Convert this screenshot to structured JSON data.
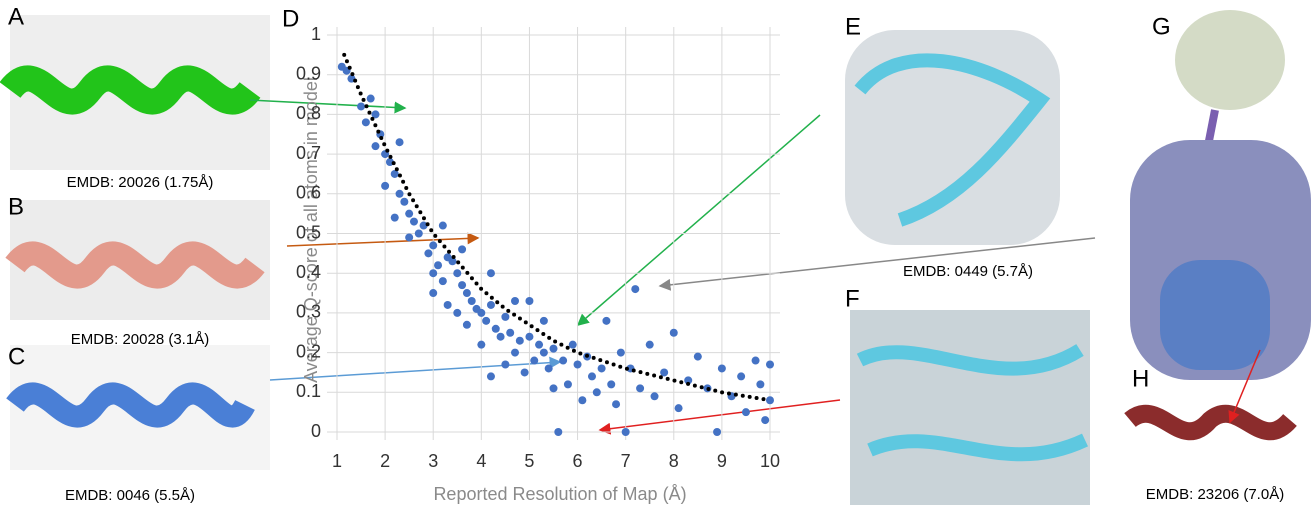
{
  "figure": {
    "panel_labels": [
      "A",
      "B",
      "C",
      "D",
      "E",
      "F",
      "G",
      "H"
    ],
    "captions": [
      "EMDB: 20026 (1.75Å)",
      "EMDB: 20028 (3.1Å)",
      "EMDB: 0046 (5.5Å)",
      "EMDB: 0449 (5.7Å)",
      "EMDB: 23206 (7.0Å)"
    ]
  },
  "chart_data": {
    "type": "scatter",
    "xlabel": "Reported Resolution of Map  (Å)",
    "ylabel": "Average Q-score of all atoms in model",
    "xlim": [
      1,
      10
    ],
    "ylim": [
      0,
      1
    ],
    "xticks": [
      1,
      2,
      3,
      4,
      5,
      6,
      7,
      8,
      9,
      10
    ],
    "yticks": [
      0,
      0.1,
      0.2,
      0.3,
      0.4,
      0.5,
      0.6,
      0.7,
      0.8,
      0.9,
      1
    ],
    "grid": true,
    "series": [
      {
        "type": "scatter",
        "color": "#4472c4",
        "x": [
          1.1,
          1.2,
          1.3,
          1.5,
          1.6,
          1.7,
          1.8,
          1.8,
          1.9,
          2.0,
          2.0,
          2.1,
          2.2,
          2.2,
          2.3,
          2.4,
          2.5,
          2.5,
          2.6,
          2.7,
          2.8,
          2.9,
          3.0,
          3.0,
          3.1,
          3.2,
          3.2,
          3.3,
          3.3,
          3.4,
          3.5,
          3.5,
          3.6,
          3.7,
          3.7,
          3.8,
          3.9,
          4.0,
          4.0,
          4.1,
          4.2,
          4.2,
          4.3,
          4.4,
          4.5,
          4.5,
          4.6,
          4.7,
          4.8,
          4.9,
          5.0,
          5.0,
          5.1,
          5.2,
          5.3,
          5.4,
          5.5,
          5.5,
          5.6,
          5.7,
          5.8,
          5.9,
          6.0,
          6.1,
          6.2,
          6.3,
          6.4,
          6.5,
          6.6,
          6.7,
          6.8,
          6.9,
          7.0,
          7.1,
          7.2,
          7.3,
          7.5,
          7.6,
          7.8,
          8.0,
          8.1,
          8.3,
          8.5,
          8.7,
          8.9,
          9.0,
          9.2,
          9.4,
          9.5,
          9.7,
          9.8,
          9.9,
          10.0,
          10.0,
          2.3,
          3.0,
          3.6,
          4.2,
          4.7,
          5.3
        ],
        "values": [
          0.92,
          0.91,
          0.89,
          0.82,
          0.78,
          0.84,
          0.8,
          0.72,
          0.75,
          0.7,
          0.62,
          0.68,
          0.65,
          0.54,
          0.6,
          0.58,
          0.55,
          0.49,
          0.53,
          0.5,
          0.52,
          0.45,
          0.47,
          0.4,
          0.42,
          0.52,
          0.38,
          0.44,
          0.32,
          0.43,
          0.4,
          0.3,
          0.37,
          0.35,
          0.27,
          0.33,
          0.31,
          0.3,
          0.22,
          0.28,
          0.32,
          0.14,
          0.26,
          0.24,
          0.29,
          0.17,
          0.25,
          0.2,
          0.23,
          0.15,
          0.24,
          0.33,
          0.18,
          0.22,
          0.2,
          0.16,
          0.21,
          0.11,
          0.0,
          0.18,
          0.12,
          0.22,
          0.17,
          0.08,
          0.19,
          0.14,
          0.1,
          0.16,
          0.28,
          0.12,
          0.07,
          0.2,
          0.0,
          0.16,
          0.36,
          0.11,
          0.22,
          0.09,
          0.15,
          0.25,
          0.06,
          0.13,
          0.19,
          0.11,
          0.0,
          0.16,
          0.09,
          0.14,
          0.05,
          0.18,
          0.12,
          0.03,
          0.17,
          0.08,
          0.73,
          0.35,
          0.46,
          0.4,
          0.33,
          0.28
        ]
      },
      {
        "type": "line",
        "color": "#000000",
        "dotted": true,
        "x": [
          1.15,
          1.5,
          2,
          2.5,
          3,
          3.5,
          4,
          4.5,
          5,
          5.5,
          6,
          7,
          8,
          9,
          10
        ],
        "values": [
          0.95,
          0.85,
          0.72,
          0.6,
          0.5,
          0.43,
          0.36,
          0.31,
          0.27,
          0.23,
          0.2,
          0.16,
          0.13,
          0.1,
          0.08
        ]
      }
    ]
  }
}
